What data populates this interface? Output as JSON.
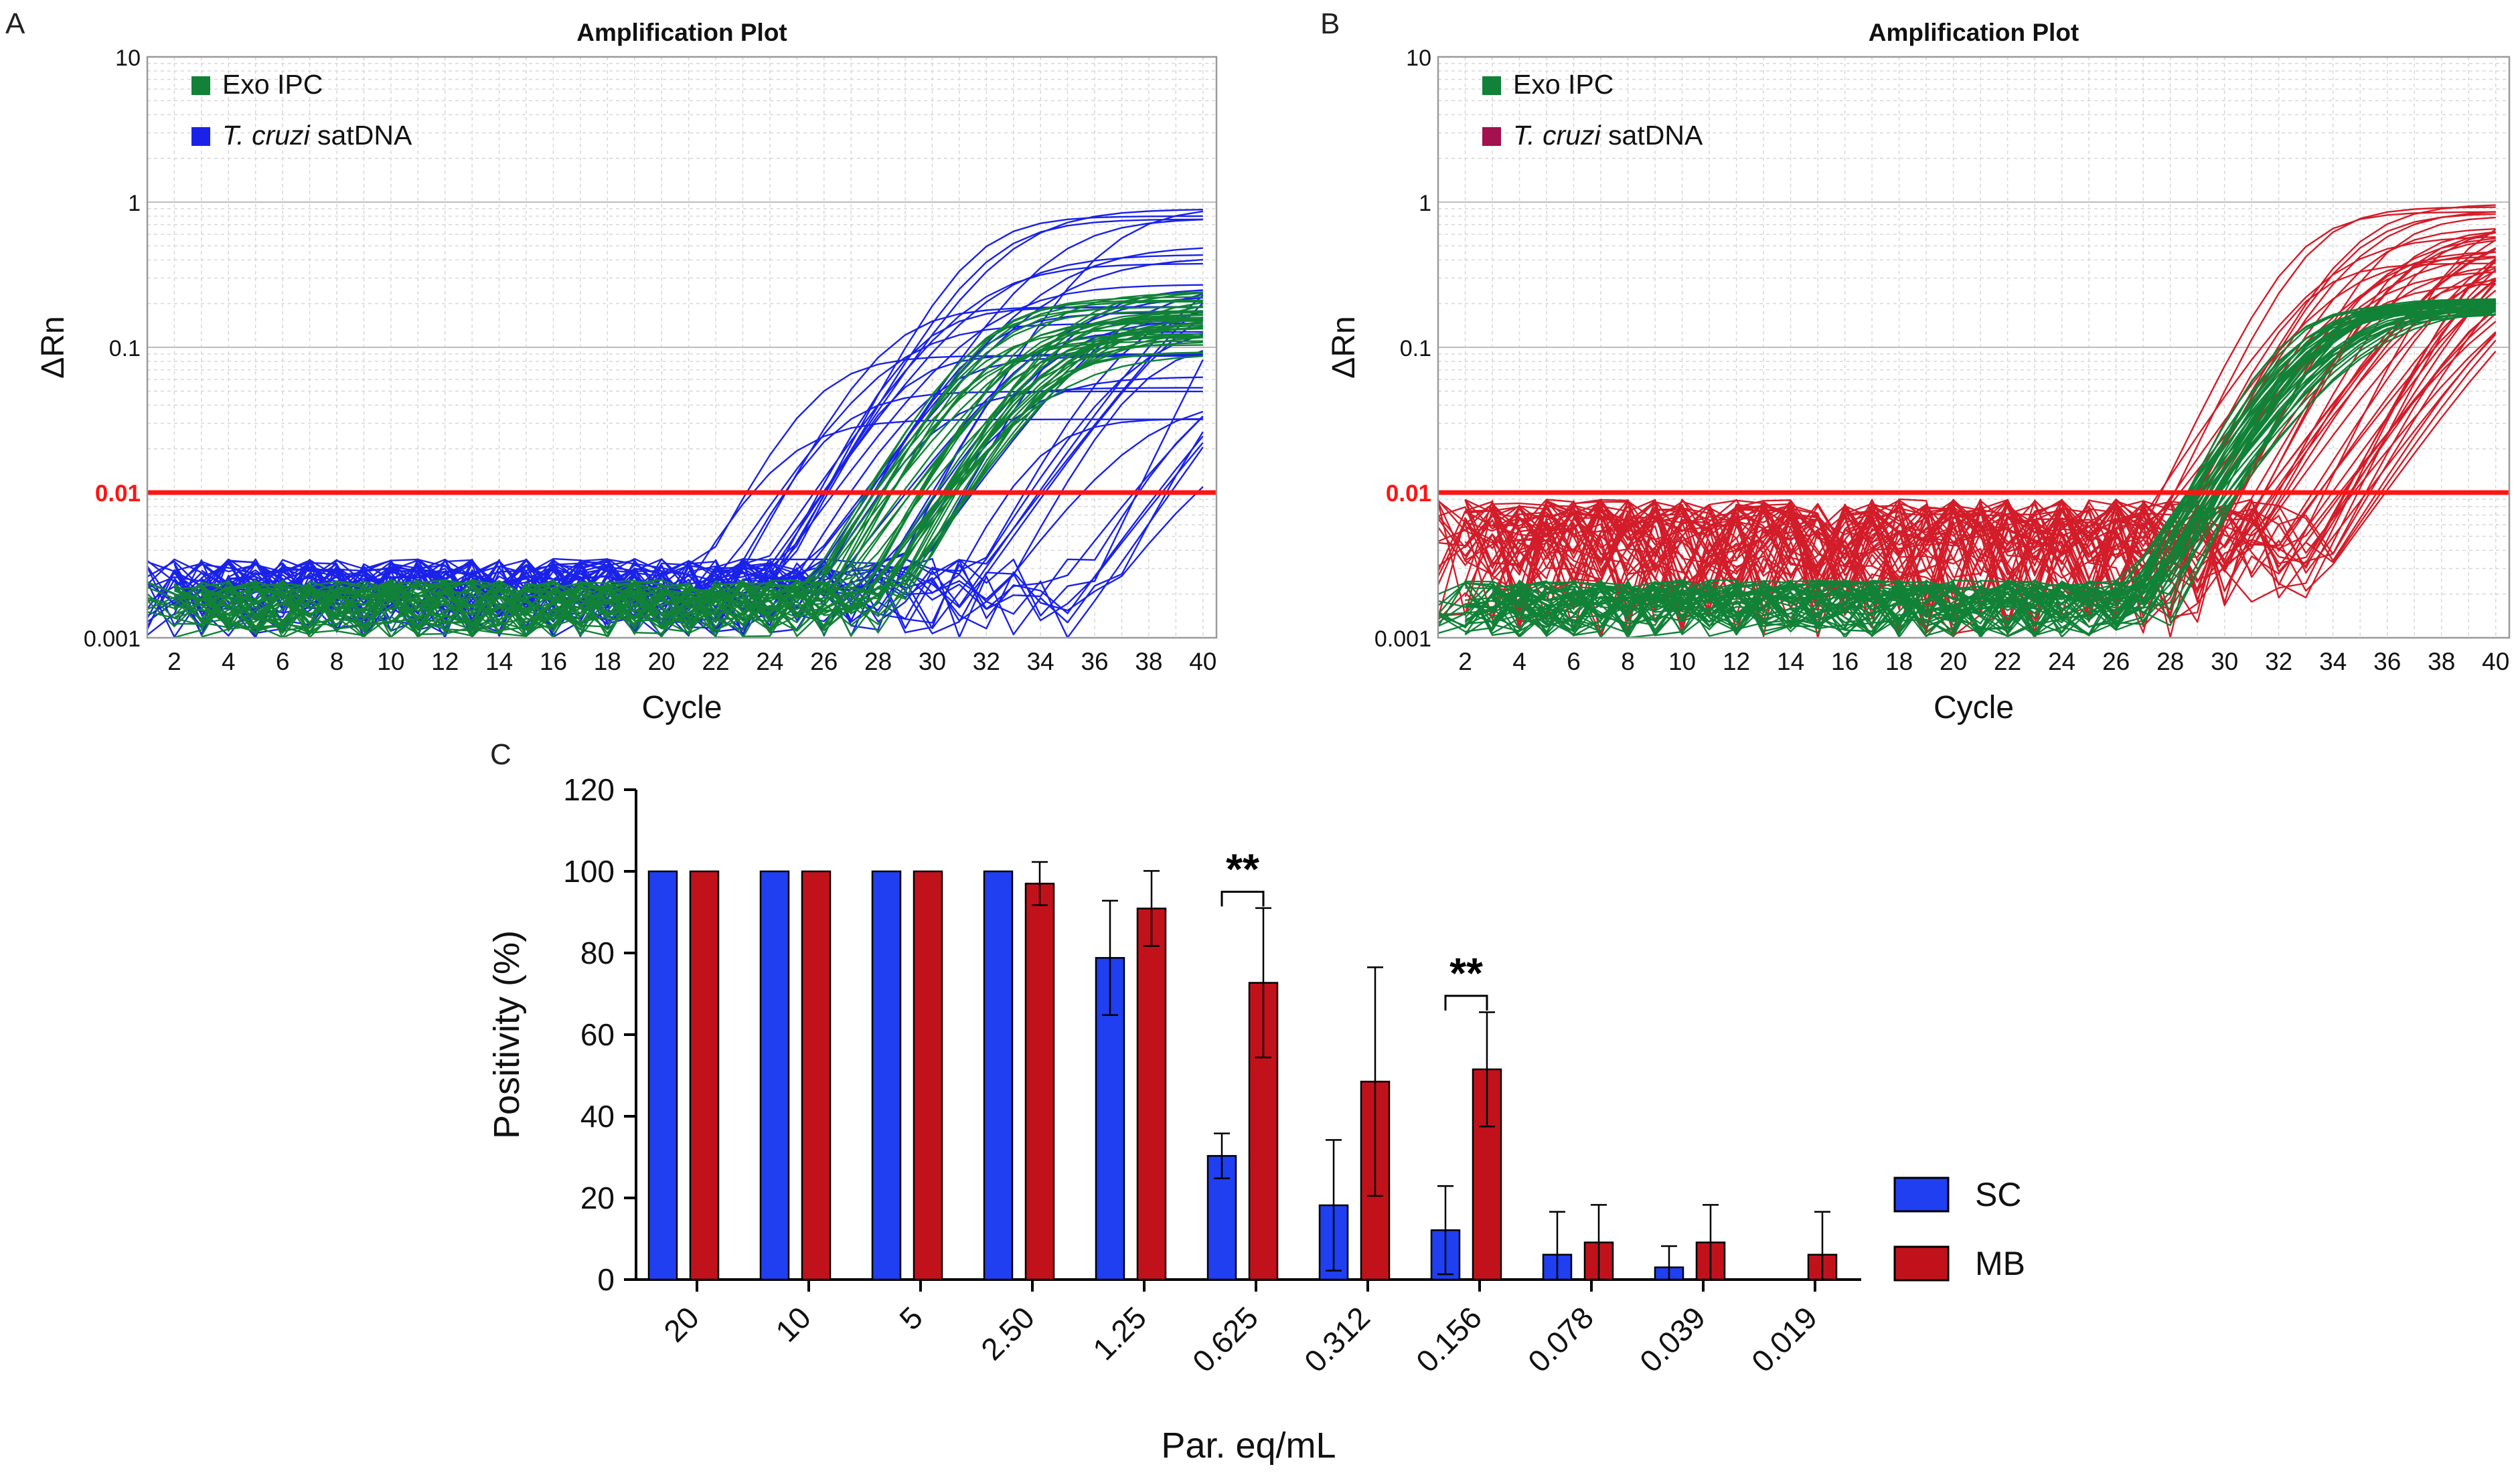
{
  "panels": {
    "A": {
      "letter": "A"
    },
    "B": {
      "letter": "B"
    },
    "C": {
      "letter": "C"
    }
  },
  "colors": {
    "ipc": "#118237",
    "target_a": "#1a22e8",
    "target_b": "#d21d2a",
    "legend_target_b": "#a3114f",
    "threshold": "#ff1414",
    "sc": "#1f3ff0",
    "mb": "#c1121c",
    "grid": "#d7d7d7"
  },
  "chart_data": [
    {
      "id": "A",
      "type": "line",
      "title": "Amplification Plot",
      "xlabel": "Cycle",
      "ylabel": "ΔRn",
      "yscale": "log",
      "xlim": [
        1,
        40.5
      ],
      "ylim": [
        0.001,
        10
      ],
      "xticks": [
        2,
        4,
        6,
        8,
        10,
        12,
        14,
        16,
        18,
        20,
        22,
        24,
        26,
        28,
        30,
        32,
        34,
        36,
        38,
        40
      ],
      "yticks": [
        {
          "value": 0.001,
          "label": "0.001"
        },
        {
          "value": 0.01,
          "label": "0.01"
        },
        {
          "value": 0.1,
          "label": "0.1"
        },
        {
          "value": 1,
          "label": "1"
        },
        {
          "value": 10,
          "label": "10"
        }
      ],
      "threshold": {
        "value": 0.01,
        "label": "0.01"
      },
      "legend": [
        {
          "key": "ipc",
          "plain": "Exo IPC",
          "italic": ""
        },
        {
          "key": "target",
          "plain": " satDNA",
          "italic": "T. cruzi"
        }
      ],
      "series": [
        {
          "name": "T. cruzi satDNA",
          "color_key": "target_a",
          "curve_count": 42,
          "ct_range": [
            23,
            40
          ],
          "plateau_range": [
            0.03,
            1.2
          ],
          "noise_ceiling": 0.0035
        },
        {
          "name": "Exo IPC",
          "color_key": "ipc",
          "curve_count": 40,
          "ct_range": [
            27.5,
            31.5
          ],
          "plateau_range": [
            0.09,
            0.26
          ],
          "noise_ceiling": 0.0025
        }
      ]
    },
    {
      "id": "B",
      "type": "line",
      "title": "Amplification Plot",
      "xlabel": "Cycle",
      "ylabel": "ΔRn",
      "yscale": "log",
      "xlim": [
        1,
        40.5
      ],
      "ylim": [
        0.001,
        10
      ],
      "xticks": [
        2,
        4,
        6,
        8,
        10,
        12,
        14,
        16,
        18,
        20,
        22,
        24,
        26,
        28,
        30,
        32,
        34,
        36,
        38,
        40
      ],
      "yticks": [
        {
          "value": 0.001,
          "label": "0.001"
        },
        {
          "value": 0.01,
          "label": "0.01"
        },
        {
          "value": 0.1,
          "label": "0.1"
        },
        {
          "value": 1,
          "label": "1"
        },
        {
          "value": 10,
          "label": "10"
        }
      ],
      "threshold": {
        "value": 0.01,
        "label": "0.01"
      },
      "legend": [
        {
          "key": "ipc",
          "plain": "Exo IPC",
          "italic": ""
        },
        {
          "key": "target",
          "plain": " satDNA",
          "italic": "T. cruzi"
        }
      ],
      "series": [
        {
          "name": "T. cruzi satDNA",
          "color_key": "target_b",
          "curve_count": 48,
          "ct_range": [
            27.5,
            36
          ],
          "plateau_range": [
            0.25,
            1.0
          ],
          "noise_ceiling": 0.009
        },
        {
          "name": "Exo IPC",
          "color_key": "ipc",
          "curve_count": 44,
          "ct_range": [
            28.5,
            30.5
          ],
          "plateau_range": [
            0.17,
            0.22
          ],
          "noise_ceiling": 0.0025
        }
      ]
    },
    {
      "id": "C",
      "type": "bar",
      "xlabel": "Par. eq/mL",
      "ylabel": "Positivity (%)",
      "ylim": [
        0,
        120
      ],
      "yticks": [
        0,
        20,
        40,
        60,
        80,
        100,
        120
      ],
      "categories": [
        "20",
        "10",
        "5",
        "2.50",
        "1.25",
        "0.625",
        "0.312",
        "0.156",
        "0.078",
        "0.039",
        "0.019"
      ],
      "series": [
        {
          "name": "SC",
          "color_key": "sc",
          "values": [
            100,
            100,
            100,
            100,
            78.8,
            30.3,
            18.2,
            12.1,
            6.1,
            3.0,
            0
          ],
          "errors": [
            0,
            0,
            0,
            0,
            14,
            5.5,
            16,
            10.8,
            10.5,
            5.2,
            0
          ]
        },
        {
          "name": "MB",
          "color_key": "mb",
          "values": [
            100,
            100,
            100,
            97,
            90.9,
            72.7,
            48.5,
            51.5,
            9.1,
            9.1,
            6.1
          ],
          "errors": [
            0,
            0,
            0,
            5.3,
            9.2,
            18.3,
            28,
            14,
            9.2,
            9.2,
            10.5
          ]
        }
      ],
      "significance": [
        {
          "category_index": 5,
          "label": "**"
        },
        {
          "category_index": 7,
          "label": "**"
        }
      ]
    }
  ]
}
